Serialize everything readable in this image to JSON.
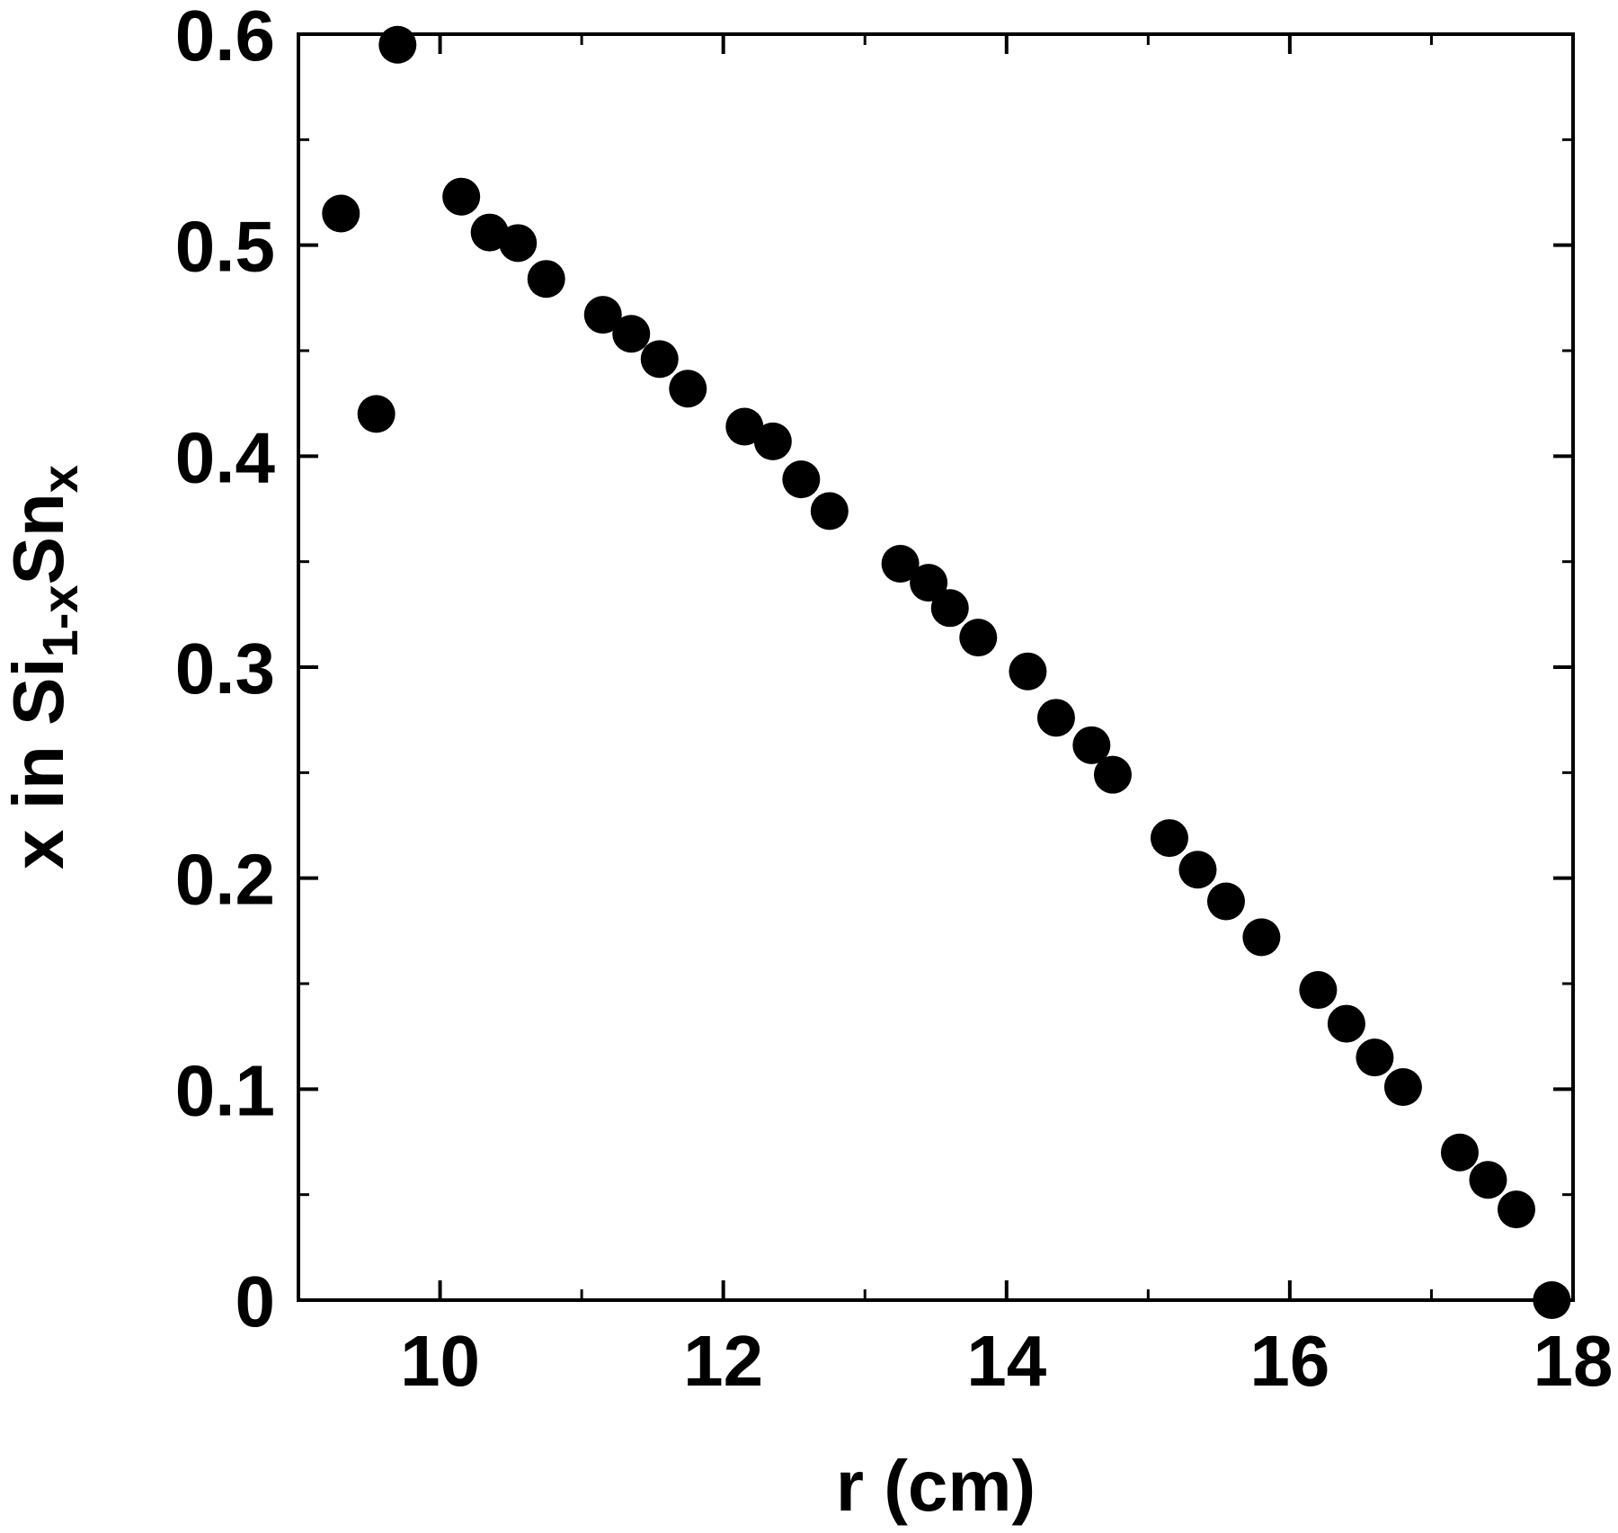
{
  "chart_data": {
    "type": "scatter",
    "title": "",
    "xlabel": "r (cm)",
    "ylabel": {
      "prefix": "x in Si",
      "sub1": "1-x",
      "mid": "Sn",
      "sub2": "x"
    },
    "xlim": [
      9,
      18
    ],
    "ylim": [
      0,
      0.6
    ],
    "x_ticks": [
      10,
      12,
      14,
      16,
      18
    ],
    "y_ticks": [
      0,
      0.1,
      0.2,
      0.3,
      0.4,
      0.5,
      0.6
    ],
    "x_tick_labels": [
      "10",
      "12",
      "14",
      "16",
      "18"
    ],
    "y_tick_labels": [
      "0",
      "0.1",
      "0.2",
      "0.3",
      "0.4",
      "0.5",
      "0.6"
    ],
    "x_minor_step": 1,
    "y_minor_step": 0.05,
    "grid": false,
    "legend": "none",
    "marker_color": "#000000",
    "points": [
      {
        "x": 9.3,
        "y": 0.515
      },
      {
        "x": 9.55,
        "y": 0.42
      },
      {
        "x": 9.7,
        "y": 0.595
      },
      {
        "x": 10.15,
        "y": 0.523
      },
      {
        "x": 10.35,
        "y": 0.506
      },
      {
        "x": 10.55,
        "y": 0.501
      },
      {
        "x": 10.75,
        "y": 0.484
      },
      {
        "x": 11.15,
        "y": 0.467
      },
      {
        "x": 11.35,
        "y": 0.458
      },
      {
        "x": 11.55,
        "y": 0.446
      },
      {
        "x": 11.75,
        "y": 0.432
      },
      {
        "x": 12.15,
        "y": 0.414
      },
      {
        "x": 12.35,
        "y": 0.407
      },
      {
        "x": 12.55,
        "y": 0.389
      },
      {
        "x": 12.75,
        "y": 0.374
      },
      {
        "x": 13.25,
        "y": 0.349
      },
      {
        "x": 13.45,
        "y": 0.34
      },
      {
        "x": 13.6,
        "y": 0.328
      },
      {
        "x": 13.8,
        "y": 0.314
      },
      {
        "x": 14.15,
        "y": 0.298
      },
      {
        "x": 14.35,
        "y": 0.276
      },
      {
        "x": 14.6,
        "y": 0.263
      },
      {
        "x": 14.75,
        "y": 0.249
      },
      {
        "x": 15.15,
        "y": 0.219
      },
      {
        "x": 15.35,
        "y": 0.204
      },
      {
        "x": 15.55,
        "y": 0.189
      },
      {
        "x": 15.8,
        "y": 0.172
      },
      {
        "x": 16.2,
        "y": 0.147
      },
      {
        "x": 16.4,
        "y": 0.131
      },
      {
        "x": 16.6,
        "y": 0.115
      },
      {
        "x": 16.8,
        "y": 0.101
      },
      {
        "x": 17.2,
        "y": 0.07
      },
      {
        "x": 17.4,
        "y": 0.057
      },
      {
        "x": 17.6,
        "y": 0.043
      },
      {
        "x": 17.85,
        "y": 0.0
      }
    ]
  }
}
